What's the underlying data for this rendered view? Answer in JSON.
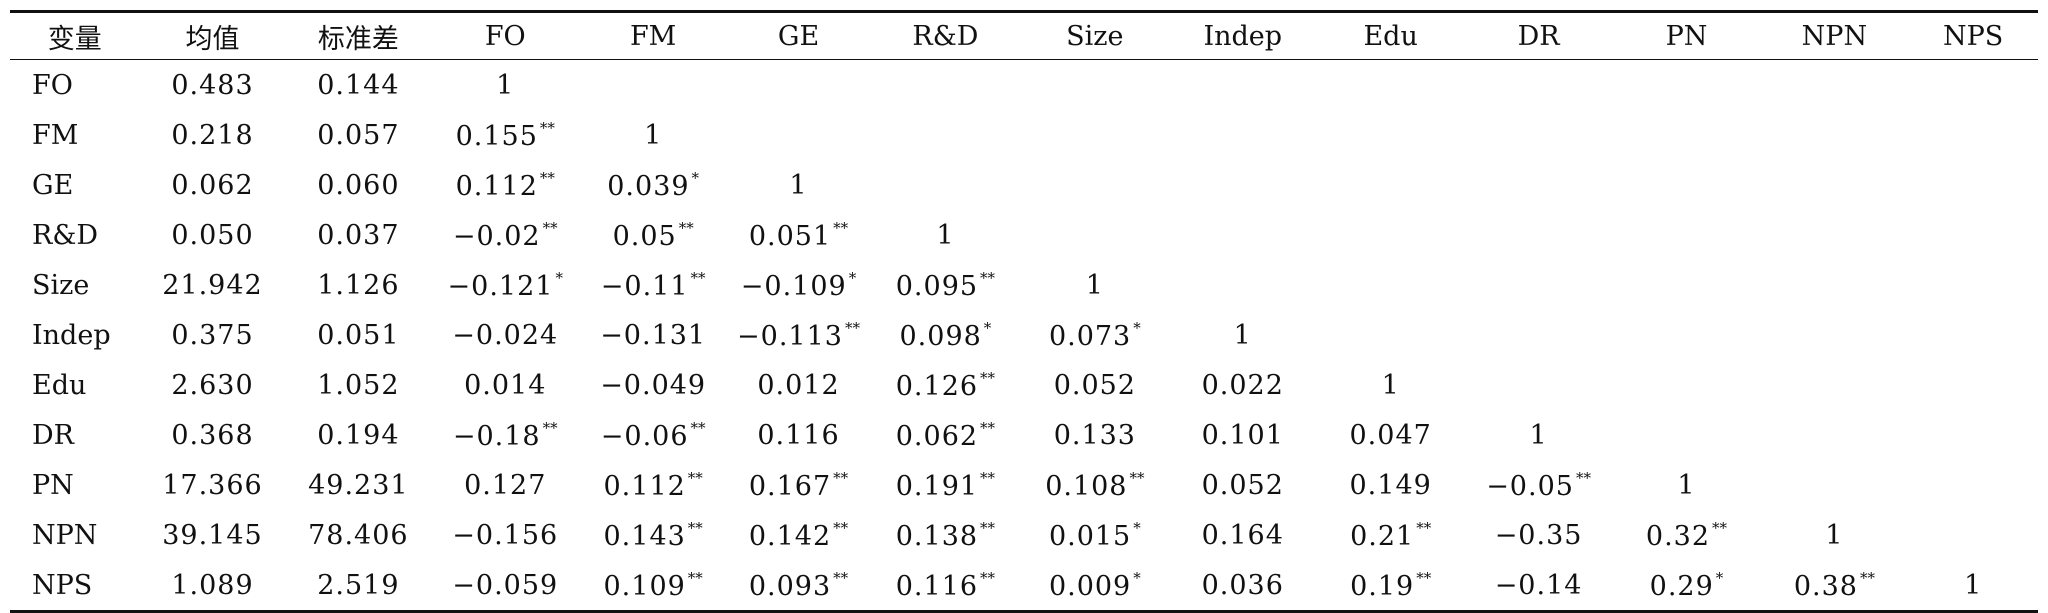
{
  "table": {
    "columns": [
      "变量",
      "均值",
      "标准差",
      "FO",
      "FM",
      "GE",
      "R&D",
      "Size",
      "Indep",
      "Edu",
      "DR",
      "PN",
      "NPN",
      "NPS"
    ],
    "rows": [
      {
        "name": "FO",
        "cells": [
          {
            "v": "0.483"
          },
          {
            "v": "0.144"
          },
          {
            "v": "1"
          }
        ]
      },
      {
        "name": "FM",
        "cells": [
          {
            "v": "0.218"
          },
          {
            "v": "0.057"
          },
          {
            "v": "0.155",
            "s": "**"
          },
          {
            "v": "1"
          }
        ]
      },
      {
        "name": "GE",
        "cells": [
          {
            "v": "0.062"
          },
          {
            "v": "0.060"
          },
          {
            "v": "0.112",
            "s": "**"
          },
          {
            "v": "0.039",
            "s": "*"
          },
          {
            "v": "1"
          }
        ]
      },
      {
        "name": "R&D",
        "cells": [
          {
            "v": "0.050"
          },
          {
            "v": "0.037"
          },
          {
            "v": "−0.02",
            "s": "**"
          },
          {
            "v": "0.05",
            "s": "**"
          },
          {
            "v": "0.051",
            "s": "**"
          },
          {
            "v": "1"
          }
        ]
      },
      {
        "name": "Size",
        "cells": [
          {
            "v": "21.942"
          },
          {
            "v": "1.126"
          },
          {
            "v": "−0.121",
            "s": "*"
          },
          {
            "v": "−0.11",
            "s": "**"
          },
          {
            "v": "−0.109",
            "s": "*"
          },
          {
            "v": "0.095",
            "s": "**"
          },
          {
            "v": "1"
          }
        ]
      },
      {
        "name": "Indep",
        "cells": [
          {
            "v": "0.375"
          },
          {
            "v": "0.051"
          },
          {
            "v": "−0.024"
          },
          {
            "v": "−0.131"
          },
          {
            "v": "−0.113",
            "s": "**"
          },
          {
            "v": "0.098",
            "s": "*"
          },
          {
            "v": "0.073",
            "s": "*"
          },
          {
            "v": "1"
          }
        ]
      },
      {
        "name": "Edu",
        "cells": [
          {
            "v": "2.630"
          },
          {
            "v": "1.052"
          },
          {
            "v": "0.014"
          },
          {
            "v": "−0.049"
          },
          {
            "v": "0.012"
          },
          {
            "v": "0.126",
            "s": "**"
          },
          {
            "v": "0.052"
          },
          {
            "v": "0.022"
          },
          {
            "v": "1"
          }
        ]
      },
      {
        "name": "DR",
        "cells": [
          {
            "v": "0.368"
          },
          {
            "v": "0.194"
          },
          {
            "v": "−0.18",
            "s": "**"
          },
          {
            "v": "−0.06",
            "s": "**"
          },
          {
            "v": "0.116"
          },
          {
            "v": "0.062",
            "s": "**"
          },
          {
            "v": "0.133"
          },
          {
            "v": "0.101"
          },
          {
            "v": "0.047"
          },
          {
            "v": "1"
          }
        ]
      },
      {
        "name": "PN",
        "cells": [
          {
            "v": "17.366"
          },
          {
            "v": "49.231"
          },
          {
            "v": "0.127"
          },
          {
            "v": "0.112",
            "s": "**"
          },
          {
            "v": "0.167",
            "s": "**"
          },
          {
            "v": "0.191",
            "s": "**"
          },
          {
            "v": "0.108",
            "s": "**"
          },
          {
            "v": "0.052"
          },
          {
            "v": "0.149"
          },
          {
            "v": "−0.05",
            "s": "**"
          },
          {
            "v": "1"
          }
        ]
      },
      {
        "name": "NPN",
        "cells": [
          {
            "v": "39.145"
          },
          {
            "v": "78.406"
          },
          {
            "v": "−0.156"
          },
          {
            "v": "0.143",
            "s": "**"
          },
          {
            "v": "0.142",
            "s": "**"
          },
          {
            "v": "0.138",
            "s": "**"
          },
          {
            "v": "0.015",
            "s": "*"
          },
          {
            "v": "0.164"
          },
          {
            "v": "0.21",
            "s": "**"
          },
          {
            "v": "−0.35"
          },
          {
            "v": "0.32",
            "s": "**"
          },
          {
            "v": "1"
          }
        ]
      },
      {
        "name": "NPS",
        "cells": [
          {
            "v": "1.089"
          },
          {
            "v": "2.519"
          },
          {
            "v": "−0.059"
          },
          {
            "v": "0.109",
            "s": "**"
          },
          {
            "v": "0.093",
            "s": "**"
          },
          {
            "v": "0.116",
            "s": "**"
          },
          {
            "v": "0.009",
            "s": "*"
          },
          {
            "v": "0.036"
          },
          {
            "v": "0.19",
            "s": "**"
          },
          {
            "v": "−0.14"
          },
          {
            "v": "0.29",
            "s": "*"
          },
          {
            "v": "0.38",
            "s": "**"
          },
          {
            "v": "1"
          }
        ]
      }
    ]
  }
}
